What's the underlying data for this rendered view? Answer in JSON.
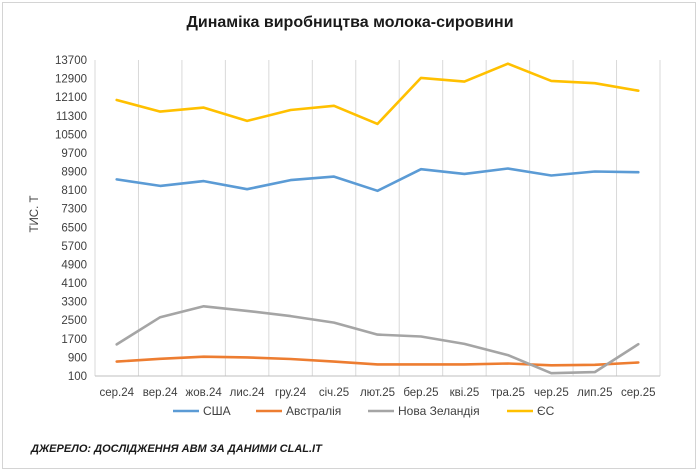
{
  "chart_data": {
    "type": "line",
    "title": "Динаміка виробництва молока-сировини",
    "ylabel": "ТИС. Т",
    "xlabel": "",
    "categories": [
      "сер.24",
      "вер.24",
      "жов.24",
      "лис.24",
      "гру.24",
      "січ.25",
      "лют.25",
      "бер.25",
      "кві.25",
      "тра.25",
      "чер.25",
      "лип.25",
      "сер.25"
    ],
    "yticks": [
      100,
      900,
      1700,
      2500,
      3300,
      4100,
      4900,
      5700,
      6500,
      7300,
      8100,
      8900,
      9700,
      10500,
      11300,
      12100,
      12900,
      13700
    ],
    "ylim": [
      100,
      13700
    ],
    "grid": "vertical",
    "legend_position": "bottom",
    "series": [
      {
        "name": "США",
        "color": "#5B9BD5",
        "values": [
          8560,
          8280,
          8490,
          8140,
          8530,
          8680,
          8070,
          9000,
          8800,
          9030,
          8730,
          8900,
          8870
        ]
      },
      {
        "name": "Австралія",
        "color": "#ED7D31",
        "values": [
          720,
          840,
          930,
          900,
          830,
          720,
          600,
          600,
          600,
          640,
          560,
          580,
          680
        ]
      },
      {
        "name": "Нова Зеландія",
        "color": "#A5A5A5",
        "values": [
          1460,
          2630,
          3100,
          2900,
          2680,
          2400,
          1880,
          1800,
          1480,
          1000,
          220,
          270,
          1470
        ]
      },
      {
        "name": "ЄС",
        "color": "#FFC000",
        "values": [
          11980,
          11480,
          11650,
          11080,
          11550,
          11730,
          10950,
          12930,
          12770,
          13540,
          12800,
          12700,
          12380
        ]
      }
    ]
  },
  "source_text": "ДЖЕРЕЛО: ДОСЛІДЖЕННЯ АВМ ЗА ДАНИМИ CLAL.IT"
}
